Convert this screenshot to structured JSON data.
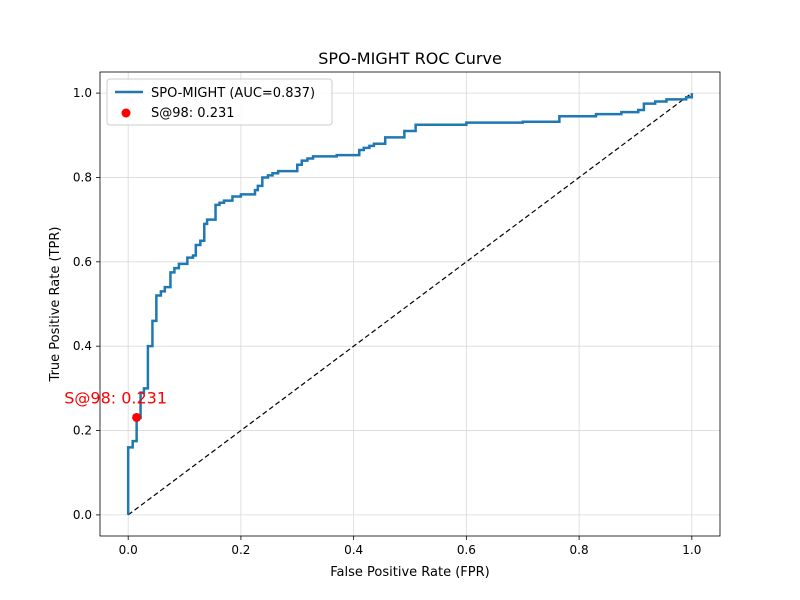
{
  "chart_data": {
    "type": "line",
    "title": "SPO-MIGHT ROC Curve",
    "xlabel": "False Positive Rate (FPR)",
    "ylabel": "True Positive Rate (TPR)",
    "xlim": [
      -0.05,
      1.05
    ],
    "ylim": [
      -0.05,
      1.05
    ],
    "xticks": [
      0.0,
      0.2,
      0.4,
      0.6,
      0.8,
      1.0
    ],
    "yticks": [
      0.0,
      0.2,
      0.4,
      0.6,
      0.8,
      1.0
    ],
    "xtick_labels": [
      "0.0",
      "0.2",
      "0.4",
      "0.6",
      "0.8",
      "1.0"
    ],
    "ytick_labels": [
      "0.0",
      "0.2",
      "0.4",
      "0.6",
      "0.8",
      "1.0"
    ],
    "grid": true,
    "legend_position": "top-left",
    "series": [
      {
        "name": "SPO-MIGHT (AUC=0.837)",
        "color": "#1f77b4",
        "style": "step",
        "points": [
          [
            0.0,
            0.0
          ],
          [
            0.0,
            0.16
          ],
          [
            0.008,
            0.16
          ],
          [
            0.008,
            0.175
          ],
          [
            0.015,
            0.175
          ],
          [
            0.015,
            0.23
          ],
          [
            0.022,
            0.23
          ],
          [
            0.022,
            0.29
          ],
          [
            0.028,
            0.29
          ],
          [
            0.028,
            0.3
          ],
          [
            0.035,
            0.3
          ],
          [
            0.035,
            0.4
          ],
          [
            0.043,
            0.4
          ],
          [
            0.043,
            0.46
          ],
          [
            0.05,
            0.46
          ],
          [
            0.05,
            0.52
          ],
          [
            0.058,
            0.52
          ],
          [
            0.058,
            0.53
          ],
          [
            0.065,
            0.53
          ],
          [
            0.065,
            0.54
          ],
          [
            0.075,
            0.54
          ],
          [
            0.075,
            0.575
          ],
          [
            0.082,
            0.575
          ],
          [
            0.082,
            0.585
          ],
          [
            0.09,
            0.585
          ],
          [
            0.09,
            0.595
          ],
          [
            0.105,
            0.595
          ],
          [
            0.105,
            0.61
          ],
          [
            0.115,
            0.61
          ],
          [
            0.115,
            0.615
          ],
          [
            0.12,
            0.615
          ],
          [
            0.12,
            0.64
          ],
          [
            0.128,
            0.64
          ],
          [
            0.128,
            0.65
          ],
          [
            0.135,
            0.65
          ],
          [
            0.135,
            0.69
          ],
          [
            0.14,
            0.69
          ],
          [
            0.14,
            0.7
          ],
          [
            0.155,
            0.7
          ],
          [
            0.155,
            0.735
          ],
          [
            0.162,
            0.735
          ],
          [
            0.162,
            0.74
          ],
          [
            0.17,
            0.74
          ],
          [
            0.17,
            0.745
          ],
          [
            0.185,
            0.745
          ],
          [
            0.185,
            0.755
          ],
          [
            0.2,
            0.755
          ],
          [
            0.2,
            0.76
          ],
          [
            0.225,
            0.76
          ],
          [
            0.225,
            0.77
          ],
          [
            0.23,
            0.77
          ],
          [
            0.23,
            0.78
          ],
          [
            0.238,
            0.78
          ],
          [
            0.238,
            0.8
          ],
          [
            0.248,
            0.8
          ],
          [
            0.248,
            0.805
          ],
          [
            0.256,
            0.805
          ],
          [
            0.256,
            0.81
          ],
          [
            0.266,
            0.81
          ],
          [
            0.266,
            0.815
          ],
          [
            0.3,
            0.815
          ],
          [
            0.3,
            0.83
          ],
          [
            0.308,
            0.83
          ],
          [
            0.308,
            0.84
          ],
          [
            0.318,
            0.84
          ],
          [
            0.318,
            0.845
          ],
          [
            0.328,
            0.845
          ],
          [
            0.328,
            0.85
          ],
          [
            0.37,
            0.85
          ],
          [
            0.37,
            0.853
          ],
          [
            0.41,
            0.853
          ],
          [
            0.41,
            0.865
          ],
          [
            0.418,
            0.865
          ],
          [
            0.418,
            0.87
          ],
          [
            0.428,
            0.87
          ],
          [
            0.428,
            0.875
          ],
          [
            0.436,
            0.875
          ],
          [
            0.436,
            0.88
          ],
          [
            0.456,
            0.88
          ],
          [
            0.456,
            0.895
          ],
          [
            0.49,
            0.895
          ],
          [
            0.49,
            0.91
          ],
          [
            0.51,
            0.91
          ],
          [
            0.51,
            0.925
          ],
          [
            0.6,
            0.925
          ],
          [
            0.6,
            0.93
          ],
          [
            0.7,
            0.93
          ],
          [
            0.7,
            0.932
          ],
          [
            0.765,
            0.932
          ],
          [
            0.765,
            0.945
          ],
          [
            0.83,
            0.945
          ],
          [
            0.83,
            0.95
          ],
          [
            0.875,
            0.95
          ],
          [
            0.875,
            0.955
          ],
          [
            0.905,
            0.955
          ],
          [
            0.905,
            0.96
          ],
          [
            0.915,
            0.96
          ],
          [
            0.915,
            0.975
          ],
          [
            0.935,
            0.975
          ],
          [
            0.935,
            0.98
          ],
          [
            0.955,
            0.98
          ],
          [
            0.955,
            0.985
          ],
          [
            0.99,
            0.985
          ],
          [
            0.99,
            0.99
          ],
          [
            1.0,
            0.99
          ],
          [
            1.0,
            1.0
          ]
        ]
      }
    ],
    "reference_line": {
      "from": [
        0.0,
        0.0
      ],
      "to": [
        1.0,
        1.0
      ],
      "color": "#000000",
      "style": "dashed"
    },
    "marker": {
      "name": "S@98: 0.231",
      "x": 0.015,
      "y": 0.231,
      "color": "#ff0000",
      "annotation": "S@98: 0.231"
    }
  }
}
